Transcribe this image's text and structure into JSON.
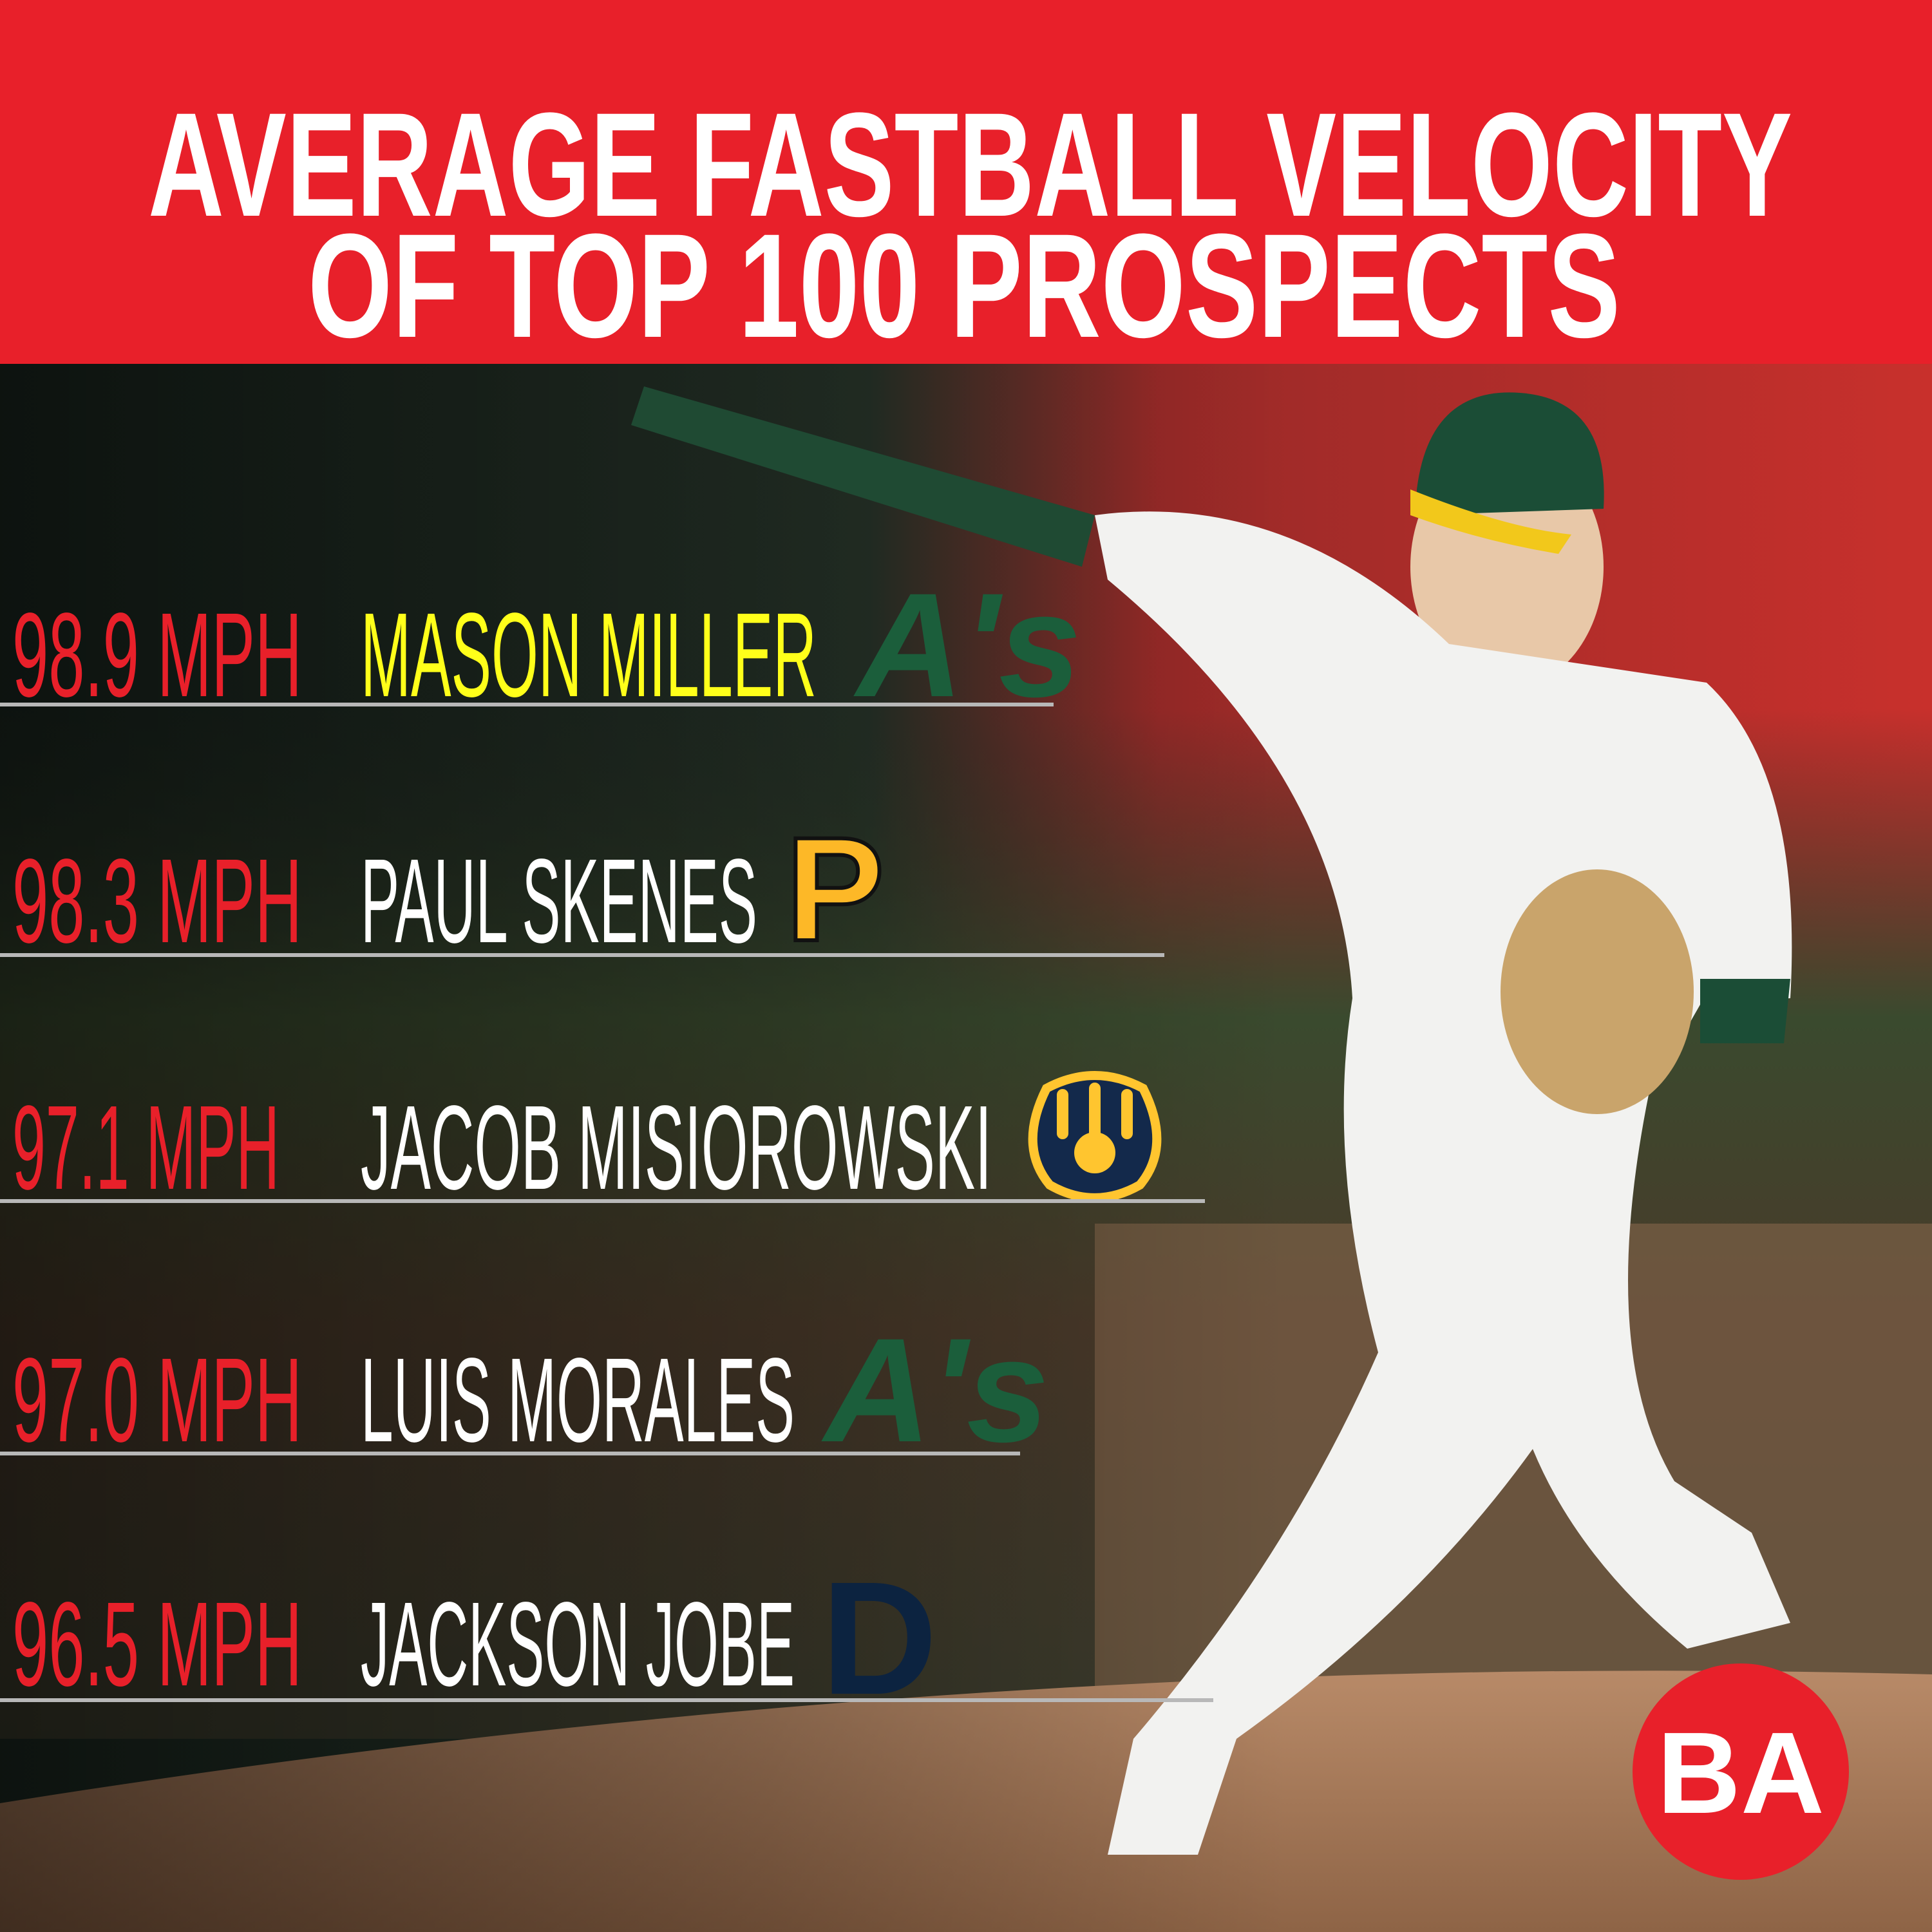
{
  "header": {
    "title_lines": [
      "AVERAGE FASTBALL VELOCITY",
      "OF TOP 100 PROSPECTS"
    ]
  },
  "rows": [
    {
      "velocity": "98.9 MPH",
      "name": "MASON MILLER",
      "logo": "A's"
    },
    {
      "velocity": "98.3 MPH",
      "name": "PAUL SKENES",
      "logo": "P"
    },
    {
      "velocity": "97.1 MPH",
      "name": "JACOB MISIOROWSKI"
    },
    {
      "velocity": "97.0 MPH",
      "name": "LUIS MORALES",
      "logo": "A's"
    },
    {
      "velocity": "96.5 MPH",
      "name": "JACKSON JOBE",
      "logo": "D"
    }
  ],
  "badge": "BA"
}
